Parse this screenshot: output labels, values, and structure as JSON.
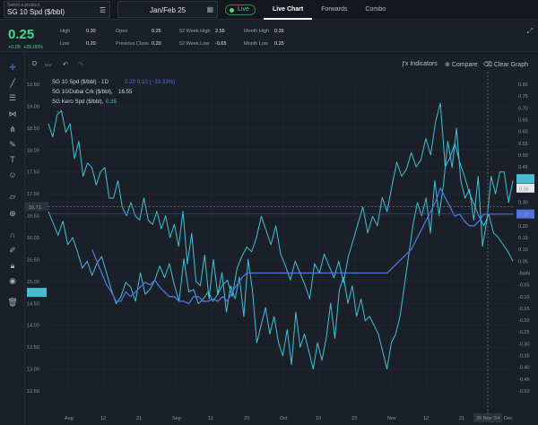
{
  "topbar": {
    "product_caption": "Select a product",
    "product_name": "SG 10 Spd ($/bbl)",
    "contract": "Jan/Feb 25",
    "live_label": "Live",
    "tabs": [
      {
        "label": "Live Chart",
        "active": true
      },
      {
        "label": "Forwards",
        "active": false
      },
      {
        "label": "Combo",
        "active": false
      }
    ]
  },
  "stats": {
    "price": "0.25",
    "change": "+0.05",
    "change_pct": "+25.00%",
    "high_label": "High",
    "high_value": "0.30",
    "low_label": "Low",
    "low_value": "0.20",
    "open_label": "Open",
    "open_value": "0.25",
    "prev_close_label": "Previous Close",
    "prev_close_value": "0.20",
    "wk52_high_label": "52 Week High",
    "wk52_high_value": "2.55",
    "wk52_low_label": "52 Week Low",
    "wk52_low_value": "-0.65",
    "month_high_label": "Month High",
    "month_high_value": "0.35",
    "month_low_label": "Month Low",
    "month_low_value": "0.25"
  },
  "toolbar": {
    "interval": "D",
    "indicators": "Indicators",
    "compare": "Compare",
    "clear": "Clear Graph"
  },
  "icons": {
    "sidebar": [
      "crosshair-icon",
      "trend-line-icon",
      "horizontal-line-icon",
      "fib-icon",
      "pitchfork-icon",
      "brush-icon",
      "text-icon",
      "emoji-icon",
      "measure-icon",
      "zoom-in-icon",
      "magnet-icon",
      "lock-drawings-icon",
      "lock-icon",
      "eye-icon",
      "trash-icon"
    ]
  },
  "chart_data": {
    "type": "line",
    "legend": [
      {
        "name": "SG 10 Spd ($/bbl) · 1D",
        "values": "0.20  0.10 (−33.33%)",
        "color": "#4e74e0"
      },
      {
        "name": "SG 10/Dubai Crk ($/bbl),",
        "values": "16.55",
        "color": "#d0d4da"
      },
      {
        "name": "SG Kero Spd ($/bbl),",
        "values": "0.35",
        "color": "#3fc2d6"
      }
    ],
    "left_axis": {
      "min": 12.5,
      "max": 19.5,
      "ticks": [
        "19.50",
        "19.00",
        "18.50",
        "18.00",
        "17.50",
        "17.00",
        "16.50",
        "16.00",
        "15.50",
        "15.00",
        "14.50",
        "14.00",
        "13.50",
        "13.00",
        "12.50"
      ]
    },
    "right_axis": {
      "min": -0.5,
      "max": 0.8,
      "ticks": [
        "0.80",
        "0.75",
        "0.70",
        "0.65",
        "0.60",
        "0.55",
        "0.50",
        "0.45",
        "0.40",
        "0.35",
        "0.30",
        "0.25",
        "0.20",
        "0.15",
        "0.10",
        "0.05",
        "-NaN",
        "-0.05",
        "-0.10",
        "-0.15",
        "-0.20",
        "-0.25",
        "-0.30",
        "-0.35",
        "-0.40",
        "-0.45",
        "-0.50"
      ]
    },
    "x_ticks": [
      "Aug",
      "12",
      "21",
      "Sep",
      "11",
      "20",
      "Oct",
      "10",
      "23",
      "Nov",
      "12",
      "21"
    ],
    "x_ticks_right": [
      "Dec"
    ],
    "crosshair_x_label": "26 Nov '24",
    "crosshair_y_label": "16.71",
    "badges": {
      "left": [
        {
          "label": "14.75",
          "value": 14.75,
          "color": "#3fc2d6"
        }
      ],
      "right": [
        {
          "label": "0.40",
          "value": 0.4,
          "color": "#3fc2d6"
        },
        {
          "label": "0.36",
          "value": 0.36,
          "color": "#e6e8eb"
        },
        {
          "label": "0.25",
          "value": 0.25,
          "color": "#4e74e0"
        }
      ]
    },
    "series": [
      {
        "name": "SG 10/Dubai Crk ($/bbl)",
        "axis": "left",
        "color": "#3fc2d6",
        "values": [
          18.6,
          18.3,
          18.8,
          18.9,
          18.4,
          18.6,
          17.8,
          18.2,
          17.4,
          17.7,
          17.6,
          17.2,
          17.5,
          17.6,
          16.9,
          16.9,
          17.3,
          16.7,
          16.5,
          16.8,
          16.5,
          16.4,
          16.9,
          16.4,
          16.3,
          16.6,
          16.2,
          16.5,
          16.0,
          16.3,
          15.8,
          16.6,
          15.4,
          16.1,
          15.0,
          14.9,
          15.6,
          14.6,
          15.5,
          14.7,
          15.2,
          14.3,
          14.9,
          14.6,
          15.1,
          14.2,
          15.5,
          14.8,
          13.6,
          14.0,
          14.4,
          13.8,
          14.2,
          13.6,
          13.3,
          13.9,
          13.1,
          14.3,
          13.5,
          13.8,
          13.4,
          13.0,
          13.6,
          13.2,
          13.7,
          14.5,
          13.7,
          14.8,
          15.1,
          14.5,
          14.9,
          14.2,
          14.6,
          14.1,
          14.2,
          14.0,
          13.8,
          13.4,
          13.0,
          13.6,
          13.8,
          14.2,
          14.9,
          15.6,
          16.3,
          16.8,
          16.5,
          16.9,
          16.1,
          17.3,
          16.5,
          17.2,
          18.2,
          17.6,
          18.5,
          17.3,
          16.9,
          17.1,
          16.4,
          17.4,
          15.8,
          16.4,
          17.4,
          17.0,
          17.5,
          17.5,
          16.8,
          17.3
        ]
      },
      {
        "name": "SG Kero Spd ($/bbl)",
        "axis": "right",
        "color": "#3fc2d6",
        "values": [
          0.26,
          0.21,
          0.16,
          0.22,
          0.12,
          0.15,
          0.09,
          0.02,
          0.05,
          -0.01,
          0.04,
          0.07,
          0.0,
          -0.07,
          -0.13,
          -0.1,
          -0.04,
          -0.06,
          -0.12,
          0.0,
          -0.09,
          -0.07,
          -0.03,
          0.03,
          -0.02,
          0.04,
          -0.05,
          -0.12,
          0.06,
          -0.08,
          -0.07,
          -0.13,
          -0.11,
          -0.08,
          -0.12,
          -0.09,
          -0.05,
          -0.03,
          -0.1,
          0.02,
          0.07,
          0.11,
          0.09,
          0.15,
          0.24,
          0.18,
          0.12,
          0.2,
          0.08,
          0.03,
          -0.03,
          0.05,
          0.0,
          -0.05,
          -0.11,
          0.04,
          0.0,
          0.08,
          0.03,
          -0.02,
          0.05,
          -0.04,
          0.07,
          0.14,
          0.21,
          0.28,
          0.17,
          0.24,
          0.2,
          0.32,
          0.26,
          0.37,
          0.47,
          0.41,
          0.44,
          0.51,
          0.45,
          0.48,
          0.57,
          0.5,
          0.64,
          0.72,
          0.45,
          0.49,
          0.55,
          0.47,
          0.41,
          0.34,
          0.29,
          0.24,
          0.2,
          0.25,
          0.17,
          0.15,
          0.12,
          0.09,
          0.05
        ]
      },
      {
        "name": "SG 10 Spd ($/bbl)",
        "axis": "right",
        "color": "#4e74e0",
        "values": [
          null,
          null,
          null,
          null,
          null,
          null,
          null,
          null,
          null,
          0.1,
          0.05,
          0.0,
          -0.05,
          -0.08,
          -0.12,
          -0.12,
          -0.08,
          -0.1,
          -0.08,
          -0.06,
          -0.04,
          -0.05,
          -0.03,
          -0.06,
          -0.08,
          -0.1,
          -0.1,
          -0.12,
          -0.12,
          -0.13,
          -0.1,
          -0.1,
          -0.12,
          -0.12,
          -0.11,
          -0.12,
          -0.1,
          -0.12,
          -0.08,
          -0.05,
          -0.02,
          0.0,
          0.0,
          0.0,
          0.0,
          0.0,
          0.0,
          0.0,
          0.0,
          0.0,
          0.0,
          0.0,
          0.0,
          0.0,
          0.0,
          0.0,
          0.0,
          0.0,
          0.0,
          0.0,
          0.0,
          0.0,
          0.0,
          0.0,
          0.0,
          0.0,
          0.0,
          0.0,
          0.0,
          0.0,
          0.0,
          0.02,
          0.04,
          0.06,
          0.08,
          0.1,
          0.14,
          0.18,
          0.22,
          0.26,
          0.3,
          0.36,
          0.32,
          0.28,
          0.24,
          0.25,
          0.22,
          0.2,
          0.2,
          0.22,
          0.25,
          0.25,
          0.25,
          0.25,
          0.25,
          0.25,
          0.25
        ]
      }
    ]
  }
}
